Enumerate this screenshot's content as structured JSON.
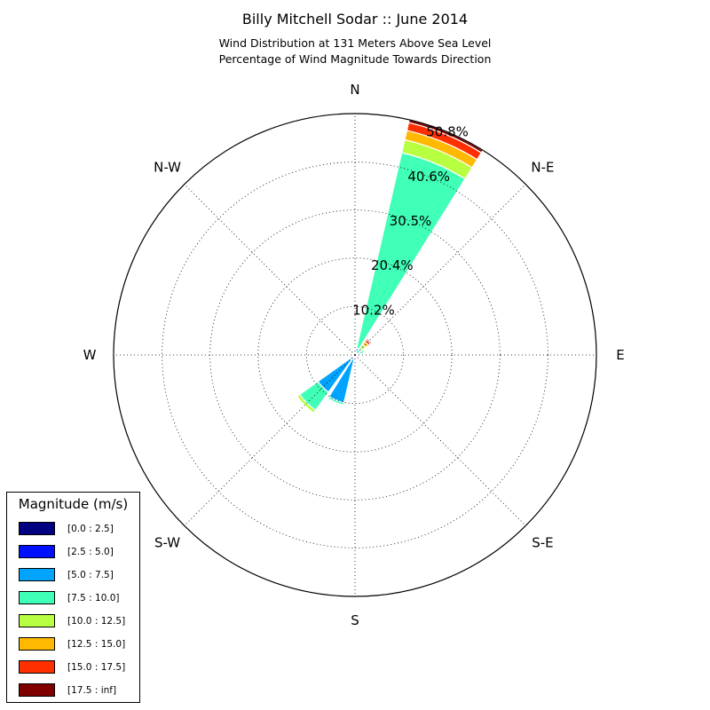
{
  "title": "Billy Mitchell Sodar :: June 2014",
  "subtitle_lines": [
    "Wind Distribution at 131 Meters Above Sea Level",
    "Percentage of Wind Magnitude Towards Direction"
  ],
  "legend": {
    "title": "Magnitude (m/s)",
    "placement": "lower-left",
    "items": [
      {
        "label": "[0.0 : 2.5]",
        "color": "#000080"
      },
      {
        "label": "[2.5 : 5.0]",
        "color": "#0010ff"
      },
      {
        "label": "[5.0 : 7.5]",
        "color": "#00a4ff"
      },
      {
        "label": "[7.5 : 10.0]",
        "color": "#40ffb7"
      },
      {
        "label": "[10.0 : 12.5]",
        "color": "#b7ff40"
      },
      {
        "label": "[12.5 : 15.0]",
        "color": "#ffb900"
      },
      {
        "label": "[15.0 : 17.5]",
        "color": "#ff3000"
      },
      {
        "label": "[17.5 : inf]",
        "color": "#800000"
      }
    ]
  },
  "chart_data": {
    "type": "windrose",
    "direction_labels": [
      "N",
      "N-E",
      "E",
      "S-E",
      "S",
      "S-W",
      "W",
      "N-W"
    ],
    "radial_ticks": [
      "10.2%",
      "20.4%",
      "30.5%",
      "40.6%",
      "50.8%"
    ],
    "radial_tick_values": [
      10.2,
      20.4,
      30.5,
      40.6,
      50.8
    ],
    "rmax": 50.8,
    "grid": true,
    "bins": [
      "[0.0 : 2.5]",
      "[2.5 : 5.0]",
      "[5.0 : 7.5]",
      "[7.5 : 10.0]",
      "[10.0 : 12.5]",
      "[12.5 : 15.0]",
      "[15.0 : 17.5]",
      "[17.5 : inf]"
    ],
    "sectors": [
      {
        "direction_deg": 22.5,
        "cumulative": [
          0.1,
          0.5,
          1.5,
          43.7,
          46.5,
          48.5,
          50.2,
          50.8
        ]
      },
      {
        "direction_deg": 45,
        "cumulative": [
          0.1,
          0.3,
          0.8,
          1.8,
          2.8,
          3.5,
          4.0,
          4.3
        ]
      },
      {
        "direction_deg": 67.5,
        "cumulative": [
          0.1,
          0.3,
          1.0,
          2.0,
          2.3,
          2.4,
          2.5,
          2.5
        ]
      },
      {
        "direction_deg": 202.5,
        "cumulative": [
          0.1,
          0.8,
          10.3,
          10.8,
          11.0,
          11.0,
          11.0,
          11.0
        ]
      },
      {
        "direction_deg": 225,
        "cumulative": [
          0.1,
          1.2,
          9.6,
          14.3,
          15.0,
          15.2,
          15.2,
          15.2
        ]
      }
    ]
  }
}
